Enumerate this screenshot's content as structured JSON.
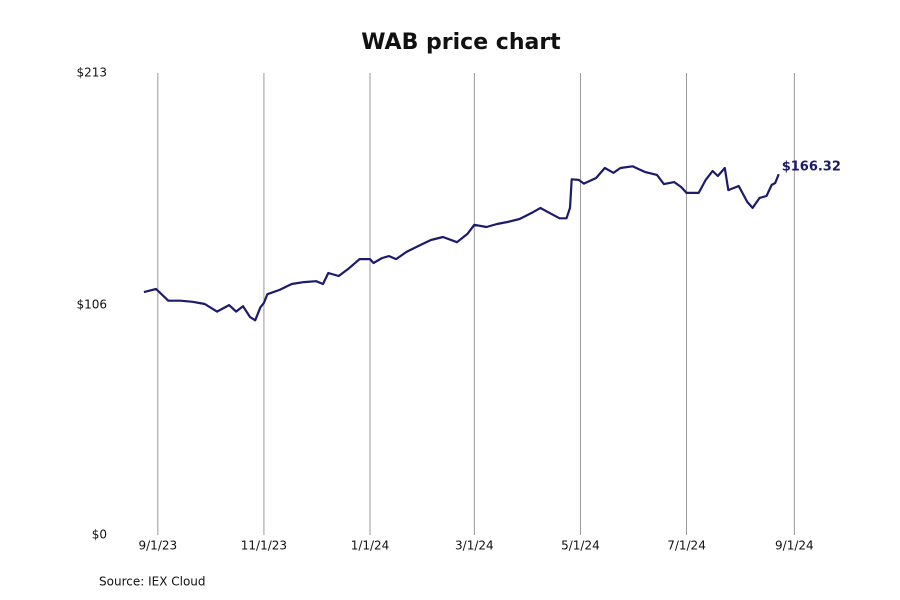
{
  "chart_data": {
    "type": "line",
    "title": "WAB price chart",
    "source": "Source: IEX Cloud",
    "x": [
      "2023-08-24",
      "2023-08-31",
      "2023-09-07",
      "2023-09-14",
      "2023-09-21",
      "2023-09-28",
      "2023-10-05",
      "2023-10-12",
      "2023-10-16",
      "2023-10-20",
      "2023-10-24",
      "2023-10-27",
      "2023-10-30",
      "2023-11-01",
      "2023-11-03",
      "2023-11-10",
      "2023-11-17",
      "2023-11-24",
      "2023-12-01",
      "2023-12-05",
      "2023-12-08",
      "2023-12-14",
      "2023-12-20",
      "2023-12-26",
      "2024-01-01",
      "2024-01-03",
      "2024-01-08",
      "2024-01-12",
      "2024-01-16",
      "2024-01-22",
      "2024-01-30",
      "2024-02-05",
      "2024-02-12",
      "2024-02-20",
      "2024-02-26",
      "2024-03-01",
      "2024-03-08",
      "2024-03-14",
      "2024-03-20",
      "2024-03-27",
      "2024-04-03",
      "2024-04-08",
      "2024-04-12",
      "2024-04-19",
      "2024-04-23",
      "2024-04-25",
      "2024-04-26",
      "2024-04-30",
      "2024-05-03",
      "2024-05-10",
      "2024-05-15",
      "2024-05-20",
      "2024-05-24",
      "2024-05-31",
      "2024-06-07",
      "2024-06-14",
      "2024-06-18",
      "2024-06-24",
      "2024-06-28",
      "2024-07-01",
      "2024-07-08",
      "2024-07-12",
      "2024-07-16",
      "2024-07-19",
      "2024-07-23",
      "2024-07-25",
      "2024-07-31",
      "2024-08-05",
      "2024-08-08",
      "2024-08-12",
      "2024-08-16",
      "2024-08-19",
      "2024-08-21",
      "2024-08-23"
    ],
    "series": [
      {
        "name": "WAB",
        "color": "#1c1a6b",
        "values": [
          112,
          113.4,
          108,
          108,
          107.5,
          106.5,
          103,
          106,
          103,
          105.5,
          100.5,
          99,
          105,
          107,
          111,
          113,
          115.7,
          116.6,
          117,
          115.7,
          120.8,
          119.4,
          123,
          127.2,
          127.2,
          125.4,
          127.7,
          128.6,
          127.2,
          130.5,
          133.7,
          136,
          137.4,
          135,
          138.8,
          143,
          142,
          143.4,
          144.3,
          145.7,
          148.5,
          150.8,
          149,
          146,
          146,
          150.8,
          164,
          163.7,
          162,
          164.6,
          169.2,
          167,
          169.2,
          170,
          167.4,
          166,
          161.8,
          162.7,
          160.4,
          157.7,
          157.7,
          163.7,
          167.8,
          165.5,
          169.2,
          159,
          160.9,
          153.5,
          150.8,
          155.4,
          156.3,
          161.4,
          162.3,
          166.32
        ],
        "value_labels": [
          null,
          null,
          null,
          null,
          null,
          null,
          null,
          null,
          null,
          null,
          null,
          null,
          null,
          null,
          null,
          null,
          null,
          null,
          null,
          null,
          null,
          null,
          null,
          null,
          null,
          null,
          null,
          null,
          null,
          null,
          null,
          null,
          null,
          null,
          null,
          null,
          null,
          null,
          null,
          null,
          null,
          null,
          null,
          null,
          null,
          null,
          null,
          null,
          null,
          null,
          null,
          null,
          null,
          null,
          null,
          null,
          null,
          null,
          null,
          null,
          null,
          null,
          null,
          null,
          null,
          null,
          null,
          null,
          null,
          null,
          null,
          null,
          null,
          "$166.32"
        ]
      }
    ],
    "xlim": [
      "2023-08-16",
      "2024-09-10"
    ],
    "xticks": [
      {
        "value": "2023-09-01",
        "label": "9/1/23"
      },
      {
        "value": "2023-11-01",
        "label": "11/1/23"
      },
      {
        "value": "2024-01-01",
        "label": "1/1/24"
      },
      {
        "value": "2024-03-01",
        "label": "3/1/24"
      },
      {
        "value": "2024-05-01",
        "label": "5/1/24"
      },
      {
        "value": "2024-07-01",
        "label": "7/1/24"
      },
      {
        "value": "2024-09-01",
        "label": "9/1/24"
      }
    ],
    "ylim": [
      0,
      213
    ],
    "yticks": [
      {
        "value": 0,
        "label": "$0"
      },
      {
        "value": 106,
        "label": "$106"
      },
      {
        "value": 213,
        "label": "$213"
      }
    ],
    "grid": "x"
  }
}
